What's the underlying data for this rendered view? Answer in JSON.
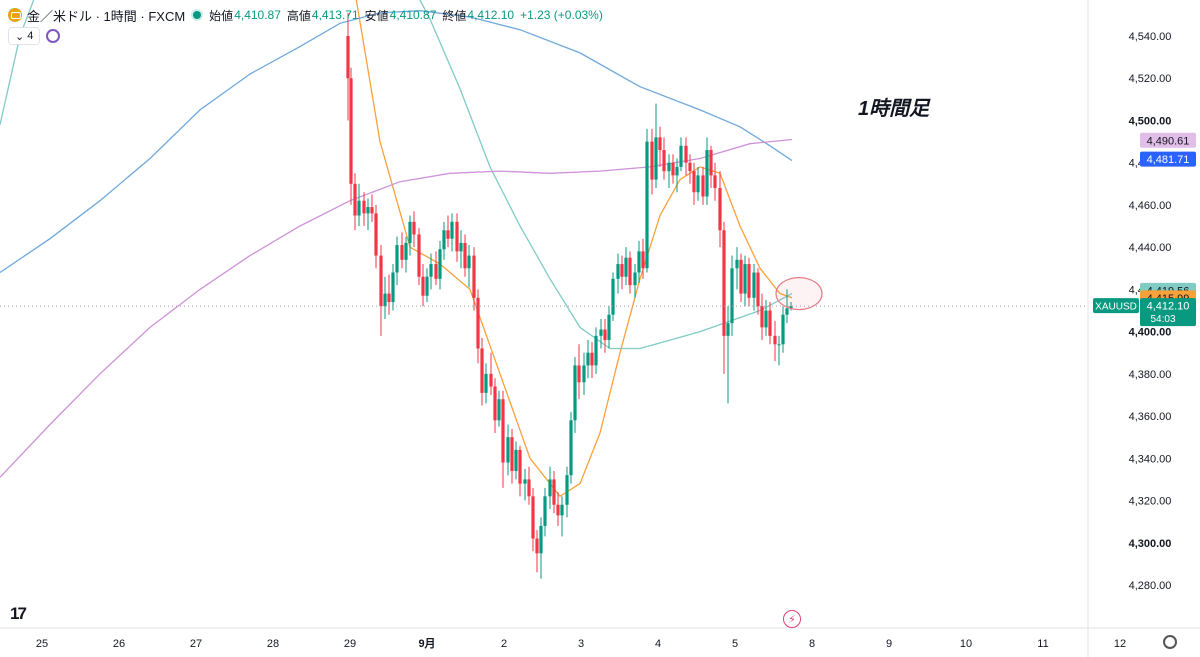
{
  "header": {
    "symbol_title": "金／米ドル · 1時間 · FXCM",
    "open_label": "始値",
    "open_value": "4,410.87",
    "high_label": "高値",
    "high_value": "4,413.71",
    "low_label": "安値",
    "low_value": "4,410.87",
    "close_label": "終値",
    "close_value": "4,412.10",
    "change": "+1.23 (+0.03%)",
    "indicator_count": "4"
  },
  "annotation": "1時間足",
  "chart_data": {
    "type": "candlestick",
    "timeframe": "1時間",
    "ylim": [
      4274,
      4552
    ],
    "y_ticks": [
      "4,280.00",
      "4,300.00",
      "4,320.00",
      "4,340.00",
      "4,360.00",
      "4,380.00",
      "4,400.00",
      "4,420.00",
      "4,440.00",
      "4,460.00",
      "4,480.00",
      "4,500.00",
      "4,520.00",
      "4,540.00"
    ],
    "bold_ticks": [
      "4,300.00",
      "4,400.00",
      "4,500.00"
    ],
    "x_labels": [
      "25",
      "26",
      "27",
      "28",
      "29",
      "9月",
      "2",
      "3",
      "4",
      "5",
      "8",
      "9",
      "10",
      "11",
      "12"
    ],
    "price_tags": [
      {
        "label": "4,490.61",
        "value": 4490.61,
        "color": "#e1bee7",
        "text_color": "#131722"
      },
      {
        "label": "4,481.71",
        "value": 4481.71,
        "color": "#2962ff",
        "text_color": "#ffffff"
      },
      {
        "label": "4,419.56",
        "value": 4419.56,
        "color": "#80cbc4",
        "text_color": "#131722"
      },
      {
        "label": "4,415.99",
        "value": 4415.99,
        "color": "#f7a13a",
        "text_color": "#131722"
      }
    ],
    "current": {
      "symbol": "XAUUSD",
      "price": "4,412.10",
      "value": 4412.1,
      "countdown": "54:03",
      "color": "#089981"
    },
    "candle_series": [
      {
        "x": 348,
        "o": 4540,
        "h": 4551,
        "l": 4500,
        "c": 4520
      },
      {
        "x": 351,
        "o": 4520,
        "h": 4525,
        "l": 4460,
        "c": 4470
      },
      {
        "x": 355,
        "o": 4470,
        "h": 4475,
        "l": 4448,
        "c": 4455
      },
      {
        "x": 359,
        "o": 4455,
        "h": 4470,
        "l": 4450,
        "c": 4462
      },
      {
        "x": 364,
        "o": 4462,
        "h": 4466,
        "l": 4450,
        "c": 4456
      },
      {
        "x": 368,
        "o": 4456,
        "h": 4463,
        "l": 4448,
        "c": 4459
      },
      {
        "x": 372,
        "o": 4459,
        "h": 4465,
        "l": 4452,
        "c": 4456
      },
      {
        "x": 376,
        "o": 4456,
        "h": 4460,
        "l": 4430,
        "c": 4436
      },
      {
        "x": 381,
        "o": 4436,
        "h": 4441,
        "l": 4398,
        "c": 4412
      },
      {
        "x": 385,
        "o": 4412,
        "h": 4426,
        "l": 4406,
        "c": 4418
      },
      {
        "x": 389,
        "o": 4418,
        "h": 4427,
        "l": 4408,
        "c": 4414
      },
      {
        "x": 393,
        "o": 4414,
        "h": 4432,
        "l": 4410,
        "c": 4428
      },
      {
        "x": 397,
        "o": 4428,
        "h": 4445,
        "l": 4422,
        "c": 4441
      },
      {
        "x": 402,
        "o": 4441,
        "h": 4447,
        "l": 4430,
        "c": 4434
      },
      {
        "x": 406,
        "o": 4434,
        "h": 4445,
        "l": 4428,
        "c": 4442
      },
      {
        "x": 410,
        "o": 4442,
        "h": 4455,
        "l": 4436,
        "c": 4452
      },
      {
        "x": 414,
        "o": 4452,
        "h": 4457,
        "l": 4440,
        "c": 4446
      },
      {
        "x": 419,
        "o": 4446,
        "h": 4449,
        "l": 4422,
        "c": 4426
      },
      {
        "x": 423,
        "o": 4426,
        "h": 4432,
        "l": 4412,
        "c": 4417
      },
      {
        "x": 427,
        "o": 4417,
        "h": 4430,
        "l": 4414,
        "c": 4426
      },
      {
        "x": 431,
        "o": 4426,
        "h": 4437,
        "l": 4420,
        "c": 4432
      },
      {
        "x": 436,
        "o": 4432,
        "h": 4438,
        "l": 4422,
        "c": 4425
      },
      {
        "x": 440,
        "o": 4425,
        "h": 4443,
        "l": 4420,
        "c": 4439
      },
      {
        "x": 444,
        "o": 4439,
        "h": 4452,
        "l": 4434,
        "c": 4448
      },
      {
        "x": 448,
        "o": 4448,
        "h": 4455,
        "l": 4440,
        "c": 4444
      },
      {
        "x": 452,
        "o": 4444,
        "h": 4456,
        "l": 4438,
        "c": 4452
      },
      {
        "x": 457,
        "o": 4452,
        "h": 4456,
        "l": 4433,
        "c": 4438
      },
      {
        "x": 461,
        "o": 4438,
        "h": 4448,
        "l": 4430,
        "c": 4442
      },
      {
        "x": 465,
        "o": 4442,
        "h": 4446,
        "l": 4426,
        "c": 4430
      },
      {
        "x": 469,
        "o": 4430,
        "h": 4441,
        "l": 4421,
        "c": 4436
      },
      {
        "x": 474,
        "o": 4436,
        "h": 4440,
        "l": 4410,
        "c": 4416
      },
      {
        "x": 478,
        "o": 4416,
        "h": 4420,
        "l": 4385,
        "c": 4392
      },
      {
        "x": 482,
        "o": 4392,
        "h": 4397,
        "l": 4365,
        "c": 4371
      },
      {
        "x": 486,
        "o": 4371,
        "h": 4385,
        "l": 4366,
        "c": 4380
      },
      {
        "x": 491,
        "o": 4380,
        "h": 4390,
        "l": 4370,
        "c": 4374
      },
      {
        "x": 495,
        "o": 4374,
        "h": 4378,
        "l": 4352,
        "c": 4358
      },
      {
        "x": 499,
        "o": 4358,
        "h": 4372,
        "l": 4355,
        "c": 4368
      },
      {
        "x": 503,
        "o": 4368,
        "h": 4372,
        "l": 4326,
        "c": 4338
      },
      {
        "x": 508,
        "o": 4338,
        "h": 4356,
        "l": 4332,
        "c": 4350
      },
      {
        "x": 512,
        "o": 4350,
        "h": 4354,
        "l": 4328,
        "c": 4334
      },
      {
        "x": 516,
        "o": 4334,
        "h": 4348,
        "l": 4330,
        "c": 4344
      },
      {
        "x": 520,
        "o": 4344,
        "h": 4346,
        "l": 4322,
        "c": 4328
      },
      {
        "x": 525,
        "o": 4328,
        "h": 4335,
        "l": 4320,
        "c": 4330
      },
      {
        "x": 529,
        "o": 4330,
        "h": 4336,
        "l": 4318,
        "c": 4322
      },
      {
        "x": 533,
        "o": 4322,
        "h": 4326,
        "l": 4296,
        "c": 4302
      },
      {
        "x": 537,
        "o": 4302,
        "h": 4306,
        "l": 4286,
        "c": 4295
      },
      {
        "x": 541,
        "o": 4295,
        "h": 4312,
        "l": 4283,
        "c": 4308
      },
      {
        "x": 545,
        "o": 4308,
        "h": 4326,
        "l": 4303,
        "c": 4322
      },
      {
        "x": 550,
        "o": 4322,
        "h": 4336,
        "l": 4316,
        "c": 4330
      },
      {
        "x": 554,
        "o": 4330,
        "h": 4334,
        "l": 4314,
        "c": 4318
      },
      {
        "x": 558,
        "o": 4318,
        "h": 4324,
        "l": 4308,
        "c": 4313
      },
      {
        "x": 562,
        "o": 4313,
        "h": 4322,
        "l": 4303,
        "c": 4318
      },
      {
        "x": 567,
        "o": 4318,
        "h": 4336,
        "l": 4312,
        "c": 4332
      },
      {
        "x": 571,
        "o": 4332,
        "h": 4362,
        "l": 4328,
        "c": 4358
      },
      {
        "x": 575,
        "o": 4358,
        "h": 4388,
        "l": 4352,
        "c": 4384
      },
      {
        "x": 579,
        "o": 4384,
        "h": 4394,
        "l": 4368,
        "c": 4376
      },
      {
        "x": 584,
        "o": 4376,
        "h": 4390,
        "l": 4370,
        "c": 4384
      },
      {
        "x": 588,
        "o": 4384,
        "h": 4396,
        "l": 4378,
        "c": 4390
      },
      {
        "x": 592,
        "o": 4390,
        "h": 4395,
        "l": 4378,
        "c": 4384
      },
      {
        "x": 596,
        "o": 4384,
        "h": 4402,
        "l": 4380,
        "c": 4398
      },
      {
        "x": 601,
        "o": 4398,
        "h": 4406,
        "l": 4392,
        "c": 4401
      },
      {
        "x": 605,
        "o": 4401,
        "h": 4406,
        "l": 4390,
        "c": 4396
      },
      {
        "x": 609,
        "o": 4396,
        "h": 4412,
        "l": 4392,
        "c": 4408
      },
      {
        "x": 613,
        "o": 4408,
        "h": 4428,
        "l": 4405,
        "c": 4425
      },
      {
        "x": 618,
        "o": 4425,
        "h": 4437,
        "l": 4418,
        "c": 4432
      },
      {
        "x": 622,
        "o": 4432,
        "h": 4436,
        "l": 4420,
        "c": 4426
      },
      {
        "x": 626,
        "o": 4426,
        "h": 4440,
        "l": 4422,
        "c": 4435
      },
      {
        "x": 630,
        "o": 4435,
        "h": 4438,
        "l": 4418,
        "c": 4422
      },
      {
        "x": 635,
        "o": 4422,
        "h": 4432,
        "l": 4416,
        "c": 4428
      },
      {
        "x": 639,
        "o": 4428,
        "h": 4443,
        "l": 4423,
        "c": 4438
      },
      {
        "x": 643,
        "o": 4438,
        "h": 4444,
        "l": 4425,
        "c": 4430
      },
      {
        "x": 647,
        "o": 4430,
        "h": 4496,
        "l": 4428,
        "c": 4490
      },
      {
        "x": 652,
        "o": 4490,
        "h": 4496,
        "l": 4465,
        "c": 4472
      },
      {
        "x": 656,
        "o": 4472,
        "h": 4508,
        "l": 4468,
        "c": 4492
      },
      {
        "x": 660,
        "o": 4492,
        "h": 4497,
        "l": 4478,
        "c": 4486
      },
      {
        "x": 664,
        "o": 4486,
        "h": 4492,
        "l": 4472,
        "c": 4476
      },
      {
        "x": 669,
        "o": 4476,
        "h": 4484,
        "l": 4468,
        "c": 4480
      },
      {
        "x": 673,
        "o": 4480,
        "h": 4484,
        "l": 4470,
        "c": 4474
      },
      {
        "x": 677,
        "o": 4474,
        "h": 4482,
        "l": 4466,
        "c": 4478
      },
      {
        "x": 681,
        "o": 4478,
        "h": 4492,
        "l": 4476,
        "c": 4488
      },
      {
        "x": 686,
        "o": 4488,
        "h": 4492,
        "l": 4474,
        "c": 4480
      },
      {
        "x": 690,
        "o": 4480,
        "h": 4484,
        "l": 4470,
        "c": 4476
      },
      {
        "x": 694,
        "o": 4476,
        "h": 4480,
        "l": 4460,
        "c": 4466
      },
      {
        "x": 698,
        "o": 4466,
        "h": 4478,
        "l": 4462,
        "c": 4474
      },
      {
        "x": 703,
        "o": 4474,
        "h": 4478,
        "l": 4460,
        "c": 4464
      },
      {
        "x": 707,
        "o": 4464,
        "h": 4492,
        "l": 4460,
        "c": 4486
      },
      {
        "x": 711,
        "o": 4486,
        "h": 4488,
        "l": 4468,
        "c": 4474
      },
      {
        "x": 715,
        "o": 4474,
        "h": 4480,
        "l": 4462,
        "c": 4468
      },
      {
        "x": 720,
        "o": 4468,
        "h": 4476,
        "l": 4440,
        "c": 4448
      },
      {
        "x": 724,
        "o": 4448,
        "h": 4452,
        "l": 4380,
        "c": 4398
      },
      {
        "x": 728,
        "o": 4398,
        "h": 4412,
        "l": 4366,
        "c": 4404
      },
      {
        "x": 732,
        "o": 4404,
        "h": 4436,
        "l": 4398,
        "c": 4430
      },
      {
        "x": 737,
        "o": 4430,
        "h": 4440,
        "l": 4420,
        "c": 4434
      },
      {
        "x": 741,
        "o": 4434,
        "h": 4437,
        "l": 4414,
        "c": 4418
      },
      {
        "x": 745,
        "o": 4418,
        "h": 4436,
        "l": 4412,
        "c": 4432
      },
      {
        "x": 749,
        "o": 4432,
        "h": 4435,
        "l": 4412,
        "c": 4416
      },
      {
        "x": 754,
        "o": 4416,
        "h": 4432,
        "l": 4410,
        "c": 4428
      },
      {
        "x": 758,
        "o": 4428,
        "h": 4430,
        "l": 4408,
        "c": 4412
      },
      {
        "x": 762,
        "o": 4412,
        "h": 4418,
        "l": 4396,
        "c": 4402
      },
      {
        "x": 766,
        "o": 4402,
        "h": 4415,
        "l": 4398,
        "c": 4410
      },
      {
        "x": 770,
        "o": 4410,
        "h": 4414,
        "l": 4394,
        "c": 4398
      },
      {
        "x": 775,
        "o": 4398,
        "h": 4405,
        "l": 4386,
        "c": 4394
      },
      {
        "x": 779,
        "o": 4394,
        "h": 4398,
        "l": 4384,
        "c": 4394
      },
      {
        "x": 783,
        "o": 4394,
        "h": 4412,
        "l": 4390,
        "c": 4408
      },
      {
        "x": 787,
        "o": 4408,
        "h": 4420,
        "l": 4404,
        "c": 4411
      },
      {
        "x": 791,
        "o": 4411,
        "h": 4414,
        "l": 4410,
        "c": 4412
      }
    ],
    "up_color": "#089981",
    "down_color": "#f23645",
    "ma_lines": [
      {
        "color": "#f7a13a",
        "points": [
          [
            350,
            4575
          ],
          [
            380,
            4490
          ],
          [
            410,
            4440
          ],
          [
            440,
            4432
          ],
          [
            470,
            4420
          ],
          [
            500,
            4380
          ],
          [
            530,
            4340
          ],
          [
            560,
            4322
          ],
          [
            580,
            4328
          ],
          [
            600,
            4352
          ],
          [
            620,
            4390
          ],
          [
            640,
            4425
          ],
          [
            660,
            4455
          ],
          [
            680,
            4472
          ],
          [
            700,
            4478
          ],
          [
            720,
            4475
          ],
          [
            740,
            4450
          ],
          [
            760,
            4430
          ],
          [
            780,
            4418
          ],
          [
            792,
            4416
          ]
        ]
      },
      {
        "color": "#80cbc4",
        "points": [
          [
            0,
            4498
          ],
          [
            20,
            4540
          ],
          [
            40,
            4565
          ],
          [
            400,
            4575
          ],
          [
            430,
            4548
          ],
          [
            460,
            4515
          ],
          [
            490,
            4478
          ],
          [
            520,
            4450
          ],
          [
            550,
            4425
          ],
          [
            580,
            4402
          ],
          [
            610,
            4392
          ],
          [
            640,
            4392
          ],
          [
            670,
            4396
          ],
          [
            700,
            4400
          ],
          [
            730,
            4405
          ],
          [
            760,
            4410
          ],
          [
            792,
            4418
          ]
        ]
      },
      {
        "color": "#6fa8dc",
        "points": [
          [
            0,
            4428
          ],
          [
            50,
            4444
          ],
          [
            100,
            4462
          ],
          [
            150,
            4482
          ],
          [
            200,
            4505
          ],
          [
            250,
            4522
          ],
          [
            300,
            4535
          ],
          [
            340,
            4546
          ],
          [
            380,
            4551
          ],
          [
            420,
            4552
          ],
          [
            470,
            4549
          ],
          [
            520,
            4543
          ],
          [
            580,
            4532
          ],
          [
            640,
            4516
          ],
          [
            700,
            4505
          ],
          [
            740,
            4497
          ],
          [
            770,
            4488
          ],
          [
            792,
            4481
          ]
        ]
      },
      {
        "color": "#ce93d8",
        "points": [
          [
            0,
            4331
          ],
          [
            50,
            4356
          ],
          [
            100,
            4380
          ],
          [
            150,
            4402
          ],
          [
            200,
            4420
          ],
          [
            250,
            4436
          ],
          [
            300,
            4450
          ],
          [
            350,
            4462
          ],
          [
            400,
            4471
          ],
          [
            450,
            4475
          ],
          [
            500,
            4476
          ],
          [
            550,
            4475
          ],
          [
            600,
            4476
          ],
          [
            650,
            4478
          ],
          [
            700,
            4482
          ],
          [
            750,
            4489
          ],
          [
            792,
            4491
          ]
        ]
      }
    ],
    "circle_marker": {
      "cx": 799,
      "cy_value": 4418,
      "rx": 23,
      "ry": 16,
      "color": "#e67d85"
    }
  }
}
